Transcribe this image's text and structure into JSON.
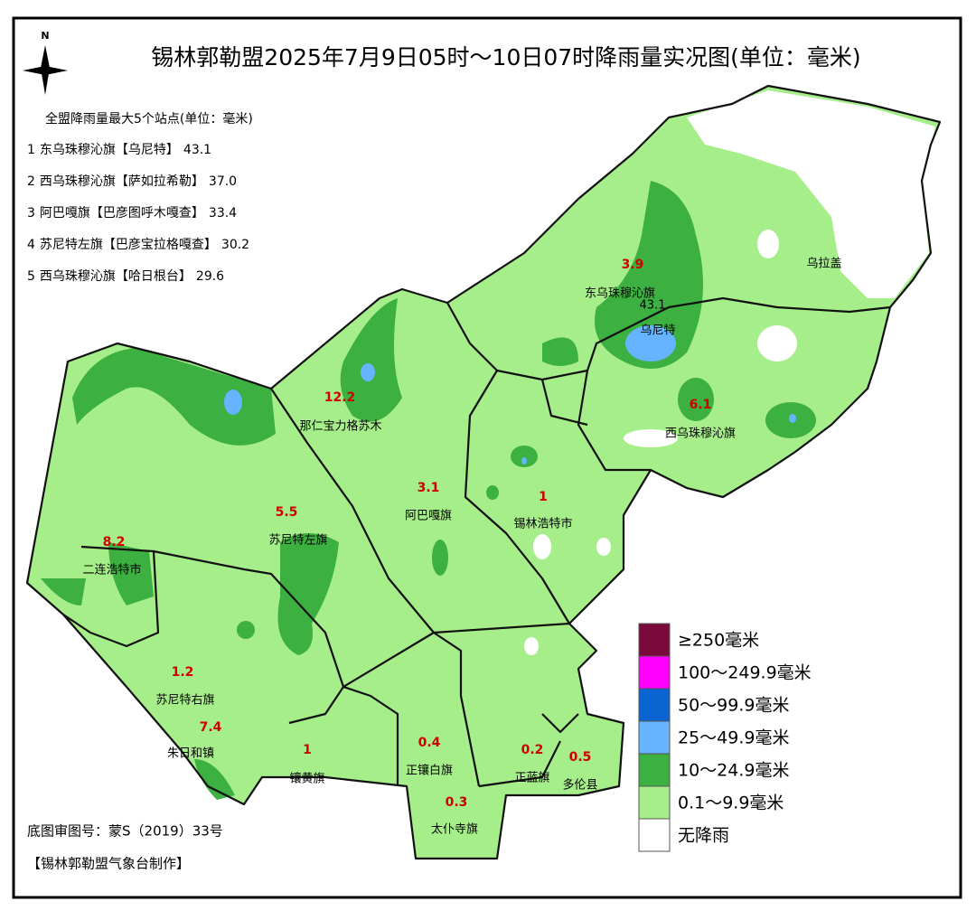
{
  "title": "锡林郭勒盟2025年7月9日05时～10日07时降雨量实况图(单位：毫米)",
  "compass": "N",
  "top_stations": {
    "heading": "全盟降雨量最大5个站点(单位：毫米)",
    "items": [
      {
        "rank": "1",
        "name": "东乌珠穆沁旗【乌尼特】",
        "value": "43.1"
      },
      {
        "rank": "2",
        "name": "西乌珠穆沁旗【萨如拉希勒】",
        "value": "37.0"
      },
      {
        "rank": "3",
        "name": "阿巴嘎旗【巴彦图呼木嘎查】",
        "value": "33.4"
      },
      {
        "rank": "4",
        "name": "苏尼特左旗【巴彦宝拉格嘎查】",
        "value": "30.2"
      },
      {
        "rank": "5",
        "name": "西乌珠穆沁旗【哈日根台】",
        "value": "29.6"
      }
    ]
  },
  "regions": [
    {
      "name": "东乌珠穆沁旗",
      "value": "3.9"
    },
    {
      "name": "西乌珠穆沁旗",
      "value": "6.1"
    },
    {
      "name": "那仁宝力格苏木",
      "value": "12.2"
    },
    {
      "name": "阿巴嘎旗",
      "value": "3.1"
    },
    {
      "name": "锡林浩特市",
      "value": "1"
    },
    {
      "name": "苏尼特左旗",
      "value": "5.5"
    },
    {
      "name": "二连浩特市",
      "value": "8.2"
    },
    {
      "name": "苏尼特右旗",
      "value": "1.2"
    },
    {
      "name": "朱日和镇",
      "value": "7.4"
    },
    {
      "name": "镶黄旗",
      "value": "1"
    },
    {
      "name": "正镶白旗",
      "value": "0.4"
    },
    {
      "name": "太仆寺旗",
      "value": "0.3"
    },
    {
      "name": "正蓝旗",
      "value": "0.2"
    },
    {
      "name": "多伦县",
      "value": "0.5"
    }
  ],
  "places": [
    {
      "name": "乌尼特",
      "value": "43.1"
    },
    {
      "name": "乌拉盖"
    }
  ],
  "legend": [
    {
      "label": "≥250毫米",
      "color": "#7b0a3c"
    },
    {
      "label": "100～249.9毫米",
      "color": "#ff00ff"
    },
    {
      "label": "50～99.9毫米",
      "color": "#0a64d2"
    },
    {
      "label": "25～49.9毫米",
      "color": "#66b3ff"
    },
    {
      "label": "10～24.9毫米",
      "color": "#3cb040"
    },
    {
      "label": "0.1～9.9毫米",
      "color": "#a6ee8a"
    },
    {
      "label": "无降雨",
      "color": "#ffffff"
    }
  ],
  "footer": {
    "map_number": "底图审图号：蒙S（2019）33号",
    "producer": "【锡林郭勒盟气象台制作】"
  }
}
